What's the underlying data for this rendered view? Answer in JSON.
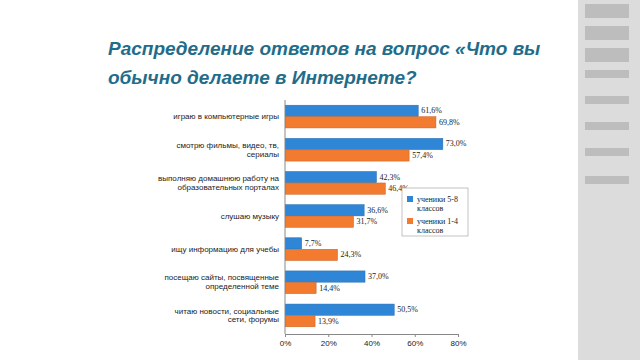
{
  "chart_data": {
    "type": "bar",
    "orientation": "horizontal",
    "title": "Распределение ответов на вопрос «Что вы\nобычно делаете в Интернете?",
    "categories": [
      "играю в компьютерные игры",
      "смотрю фильмы, видео, тв,\nсериалы",
      "выполняю домашнюю работу на\nобразовательных порталах",
      "слушаю музыку",
      "ищу информацию для учебы",
      "посещаю сайты, посвященные\nопределенной теме",
      "читаю новости, социальные\nсети, форумы"
    ],
    "series": [
      {
        "name": "ученики 5-8\nклассов",
        "color": "#2f86d6",
        "values": [
          61.6,
          73.0,
          42.3,
          36.6,
          7.7,
          37.0,
          50.5
        ],
        "value_labels": [
          "61,6%",
          "73,0%",
          "42,3%",
          "36,6%",
          "7,7%",
          "37,0%",
          "50,5%"
        ]
      },
      {
        "name": "ученики 1-4\nклассов",
        "color": "#f27b2f",
        "values": [
          69.8,
          57.4,
          46.4,
          31.7,
          24.3,
          14.4,
          13.9
        ],
        "value_labels": [
          "69,8%",
          "57,4%",
          "46,4%",
          "31,7%",
          "24,3%",
          "14,4%",
          "13,9%"
        ]
      }
    ],
    "xlim": [
      0,
      80
    ],
    "xticks": [
      {
        "value": 0,
        "label": "0%"
      },
      {
        "value": 20,
        "label": "20%"
      },
      {
        "value": 40,
        "label": "40%"
      },
      {
        "value": 60,
        "label": "60%"
      },
      {
        "value": 80,
        "label": "80%"
      }
    ],
    "data_labels": true,
    "legend": "right",
    "grid": false
  }
}
